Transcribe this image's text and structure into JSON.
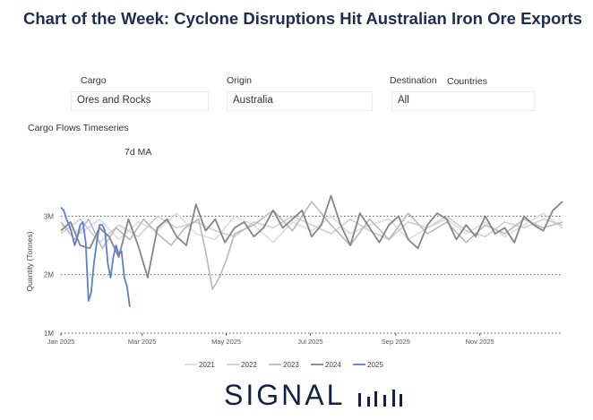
{
  "title": "Chart of the Week: Cyclone Disruptions Hit Australian Iron Ore Exports",
  "filters": {
    "cargo": {
      "label": "Cargo",
      "value": "Ores and Rocks"
    },
    "origin": {
      "label": "Origin",
      "value": "Australia"
    },
    "destination": {
      "label": "Destination",
      "extra_label": "Countries",
      "value": "All"
    }
  },
  "section_title": "Cargo Flows Timeseries",
  "ma_label": "7d MA",
  "logo": {
    "text": "SIGNAL"
  },
  "colors": {
    "s2021": "#dcdcdc",
    "s2022": "#cfcfcf",
    "s2023": "#b9b9b9",
    "s2024": "#858585",
    "s2025": "#5b7fd6",
    "grid": "#555555",
    "logo": "#14204a"
  },
  "chart_data": {
    "type": "line",
    "ylabel": "Quantity (Tonnes)",
    "y_ticks": [
      "1M",
      "2M",
      "3M"
    ],
    "x_ticks": [
      "Jan 2025",
      "Mar 2025",
      "May 2025",
      "Jul 2025",
      "Sep 2025",
      "Nov 2025"
    ],
    "ylim": [
      1.0,
      3.45
    ],
    "xlim_days": [
      0,
      364
    ],
    "grid": true,
    "legend_position": "bottom",
    "series": [
      {
        "name": "2021",
        "day": [
          0,
          14,
          28,
          42,
          56,
          70,
          84,
          98,
          112,
          126,
          140,
          154,
          168,
          182,
          196,
          210,
          224,
          238,
          252,
          266,
          280,
          294,
          308,
          322,
          336,
          350,
          364
        ],
        "values": [
          2.85,
          2.7,
          2.95,
          2.6,
          2.9,
          2.75,
          3.05,
          2.7,
          2.6,
          3.0,
          2.85,
          2.55,
          2.9,
          2.75,
          3.0,
          2.7,
          2.85,
          2.95,
          2.6,
          2.8,
          2.95,
          2.7,
          2.9,
          2.65,
          2.85,
          3.05,
          2.8
        ]
      },
      {
        "name": "2022",
        "day": [
          0,
          14,
          28,
          42,
          56,
          70,
          84,
          98,
          112,
          126,
          140,
          154,
          168,
          182,
          196,
          210,
          224,
          238,
          252,
          266,
          280,
          294,
          308,
          322,
          336,
          350,
          364
        ],
        "values": [
          2.7,
          2.95,
          2.55,
          2.85,
          2.65,
          3.0,
          2.8,
          2.9,
          2.75,
          2.65,
          2.9,
          2.8,
          3.0,
          2.85,
          2.7,
          2.95,
          2.75,
          2.6,
          2.9,
          2.8,
          3.0,
          2.75,
          2.65,
          2.9,
          2.8,
          2.95,
          2.85
        ]
      },
      {
        "name": "2023",
        "day": [
          0,
          10,
          20,
          30,
          40,
          50,
          60,
          70,
          80,
          90,
          100,
          105,
          110,
          115,
          120,
          126,
          140,
          154,
          168,
          182,
          196,
          210,
          224,
          238,
          252,
          266,
          280,
          294,
          308,
          322,
          336,
          350,
          364
        ],
        "values": [
          2.9,
          2.6,
          2.95,
          2.45,
          2.8,
          2.6,
          2.95,
          2.7,
          2.5,
          2.8,
          2.95,
          2.4,
          1.75,
          1.95,
          2.25,
          2.7,
          2.85,
          3.1,
          2.75,
          3.25,
          2.85,
          2.5,
          2.95,
          2.6,
          3.05,
          2.7,
          2.9,
          2.55,
          2.85,
          2.7,
          2.95,
          2.8,
          2.9
        ]
      },
      {
        "name": "2024",
        "day": [
          0,
          7,
          14,
          21,
          28,
          35,
          42,
          49,
          56,
          63,
          70,
          77,
          84,
          91,
          98,
          105,
          112,
          119,
          126,
          133,
          140,
          147,
          154,
          161,
          168,
          175,
          182,
          189,
          196,
          203,
          210,
          217,
          224,
          231,
          238,
          245,
          252,
          259,
          266,
          273,
          280,
          287,
          294,
          301,
          308,
          315,
          322,
          329,
          336,
          343,
          350,
          357,
          364
        ],
        "values": [
          2.75,
          2.9,
          2.5,
          2.45,
          2.8,
          2.65,
          2.3,
          2.95,
          2.5,
          1.95,
          2.8,
          2.95,
          2.65,
          2.5,
          3.2,
          2.75,
          2.95,
          2.55,
          2.8,
          2.9,
          2.65,
          2.8,
          3.1,
          2.8,
          2.95,
          3.1,
          2.65,
          2.85,
          3.35,
          2.85,
          2.5,
          3.05,
          2.8,
          2.55,
          2.85,
          3.0,
          2.6,
          2.45,
          2.85,
          3.05,
          2.95,
          2.6,
          2.85,
          2.65,
          3.0,
          2.7,
          2.8,
          2.55,
          3.0,
          2.85,
          2.75,
          3.1,
          3.25
        ]
      },
      {
        "name": "2025",
        "day": [
          0,
          2,
          4,
          6,
          8,
          10,
          12,
          14,
          16,
          18,
          20,
          22,
          24,
          26,
          28,
          30,
          32,
          34,
          36,
          38,
          40,
          42,
          44,
          46,
          48,
          50
        ],
        "values": [
          3.15,
          3.1,
          2.95,
          2.85,
          2.7,
          2.5,
          2.65,
          2.85,
          2.9,
          2.55,
          1.55,
          1.7,
          2.2,
          2.55,
          2.85,
          2.85,
          2.75,
          2.2,
          1.95,
          2.3,
          2.5,
          2.35,
          2.4,
          1.95,
          1.8,
          1.45
        ]
      }
    ]
  }
}
